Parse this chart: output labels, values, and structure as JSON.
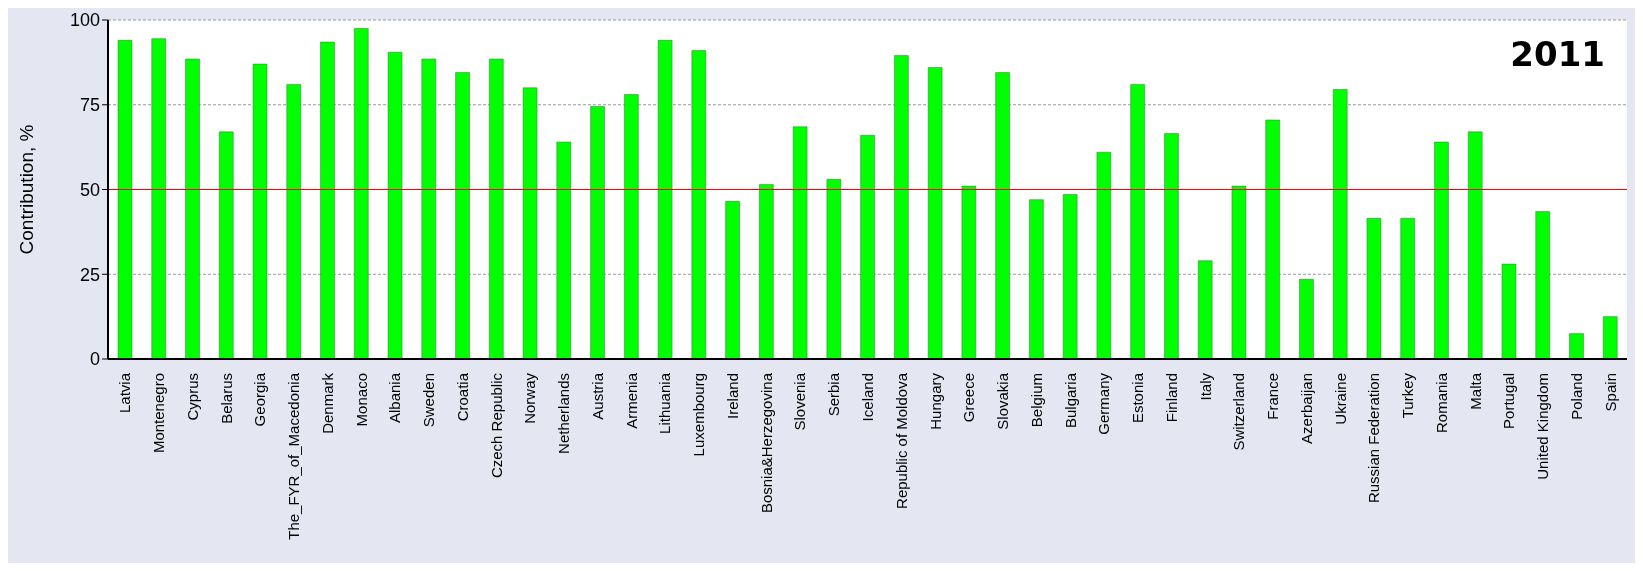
{
  "chart_data": {
    "type": "bar",
    "ylabel": "Contribution, %",
    "categories": [
      "Latvia",
      "Montenegro",
      "Cyprus",
      "Belarus",
      "Georgia",
      "The_FYR_of_Macedonia",
      "Denmark",
      "Monaco",
      "Albania",
      "Sweden",
      "Croatia",
      "Czech Republic",
      "Norway",
      "Netherlands",
      "Austria",
      "Armenia",
      "Lithuania",
      "Luxembourg",
      "Ireland",
      "Bosnia&Herzegovina",
      "Slovenia",
      "Serbia",
      "Iceland",
      "Republic of Moldova",
      "Hungary",
      "Greece",
      "Slovakia",
      "Belgium",
      "Bulgaria",
      "Germany",
      "Estonia",
      "Finland",
      "Italy",
      "Switzerland",
      "France",
      "Azerbaijan",
      "Ukraine",
      "Russian Federation",
      "Turkey",
      "Romania",
      "Malta",
      "Portugal",
      "United Kingdom",
      "Poland",
      "Spain"
    ],
    "values": [
      94,
      94.5,
      88.5,
      67,
      87,
      81,
      93.5,
      97.5,
      90.5,
      88.5,
      84.5,
      88.5,
      80,
      64,
      74.5,
      78,
      94,
      91,
      46.5,
      51.5,
      68.5,
      53,
      66,
      89.5,
      86,
      51,
      84.5,
      47,
      48.5,
      61,
      81,
      66.5,
      29,
      51,
      70.5,
      23.5,
      79.5,
      41.5,
      41.5,
      64,
      67,
      28,
      43.5,
      7.5,
      12.5
    ],
    "color": "#00ff00",
    "ylim": [
      0,
      100
    ],
    "yticks": [
      0,
      25,
      50,
      75,
      100
    ],
    "grid": "y",
    "ref_lines": [
      {
        "axis": "y",
        "value": 50,
        "color": "#ff0000"
      }
    ],
    "annotations": [
      "2011"
    ]
  }
}
